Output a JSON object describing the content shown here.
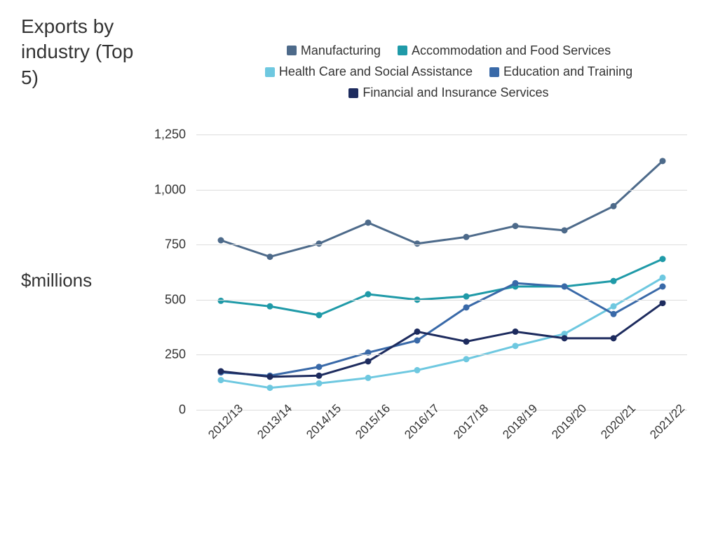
{
  "title": "Exports by industry (Top 5)",
  "ylabel": "$millions",
  "chart": {
    "type": "line",
    "background_color": "#ffffff",
    "grid_color": "#dddddd",
    "text_color": "#333333",
    "title_fontsize": 28,
    "label_fontsize": 26,
    "legend_fontsize": 18,
    "tick_fontsize": 18,
    "line_width": 3,
    "marker_radius": 4.5,
    "ylim": [
      0,
      1400
    ],
    "ytick_step": 250,
    "yticks": [
      0,
      250,
      500,
      750,
      1000,
      1250
    ],
    "categories": [
      "2012/13",
      "2013/14",
      "2014/15",
      "2015/16",
      "2016/17",
      "2017/18",
      "2018/19",
      "2019/20",
      "2020/21",
      "2021/22"
    ],
    "xtick_rotation": -45,
    "series": [
      {
        "name": "Manufacturing",
        "color": "#4d6a8a",
        "values": [
          770,
          695,
          755,
          850,
          755,
          785,
          835,
          815,
          925,
          1130
        ]
      },
      {
        "name": "Accommodation and Food Services",
        "color": "#1f9aa8",
        "values": [
          495,
          470,
          430,
          525,
          500,
          515,
          560,
          560,
          585,
          685
        ]
      },
      {
        "name": "Health Care and Social Assistance",
        "color": "#6ec8e0",
        "values": [
          135,
          100,
          120,
          145,
          180,
          230,
          290,
          345,
          470,
          600
        ]
      },
      {
        "name": "Education and Training",
        "color": "#3969a8",
        "values": [
          170,
          155,
          195,
          260,
          315,
          465,
          575,
          560,
          435,
          560
        ]
      },
      {
        "name": "Financial and Insurance Services",
        "color": "#1d2b5e",
        "values": [
          175,
          150,
          155,
          220,
          355,
          310,
          355,
          325,
          325,
          485
        ]
      }
    ],
    "legend_rows": [
      [
        0,
        1
      ],
      [
        2,
        3
      ],
      [
        4
      ]
    ]
  }
}
